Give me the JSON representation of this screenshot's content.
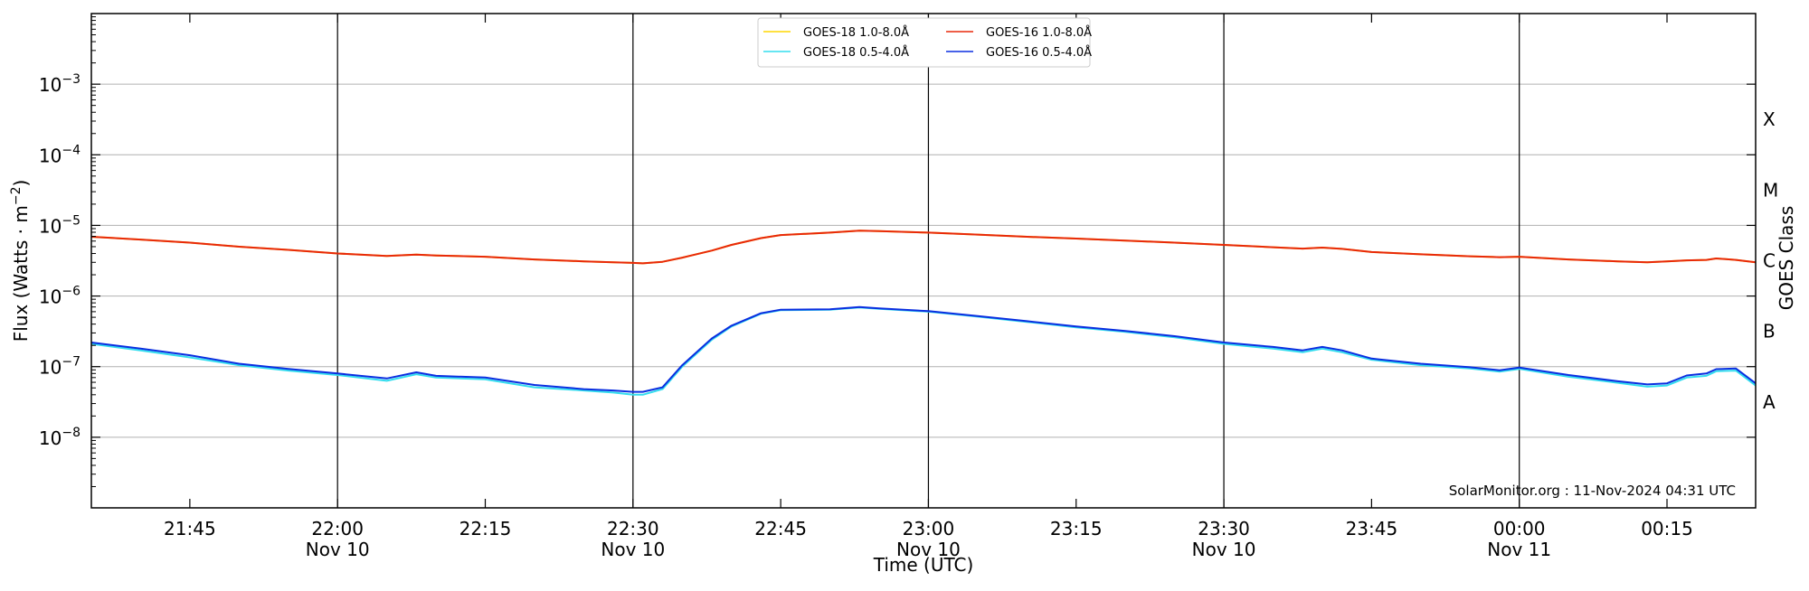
{
  "chart_data": {
    "type": "line",
    "title": "",
    "xlabel": "Time (UTC)",
    "ylabel": "Flux (Watts · m⁻²)",
    "y2label": "GOES Class",
    "yscale": "log",
    "xlim": [
      "2024-11-10T21:35",
      "2024-11-11T00:24"
    ],
    "ylim": [
      1e-09,
      0.01
    ],
    "grid": "horizontal at each decade; vertical lines at 30-minute marks",
    "legend_position": "top-center",
    "watermark": "SolarMonitor.org : 11-Nov-2024 04:31 UTC",
    "y_ticks": [
      {
        "value": 1e-08,
        "base": "10",
        "exp": "−8"
      },
      {
        "value": 1e-07,
        "base": "10",
        "exp": "−7"
      },
      {
        "value": 1e-06,
        "base": "10",
        "exp": "−6"
      },
      {
        "value": 1e-05,
        "base": "10",
        "exp": "−5"
      },
      {
        "value": 0.0001,
        "base": "10",
        "exp": "−4"
      },
      {
        "value": 0.001,
        "base": "10",
        "exp": "−3"
      }
    ],
    "x_ticks": [
      {
        "time": "2024-11-10T21:45",
        "label": "21:45",
        "sublabel": ""
      },
      {
        "time": "2024-11-10T22:00",
        "label": "22:00",
        "sublabel": "Nov 10"
      },
      {
        "time": "2024-11-10T22:15",
        "label": "22:15",
        "sublabel": ""
      },
      {
        "time": "2024-11-10T22:30",
        "label": "22:30",
        "sublabel": "Nov 10"
      },
      {
        "time": "2024-11-10T22:45",
        "label": "22:45",
        "sublabel": ""
      },
      {
        "time": "2024-11-10T23:00",
        "label": "23:00",
        "sublabel": "Nov 10"
      },
      {
        "time": "2024-11-10T23:15",
        "label": "23:15",
        "sublabel": ""
      },
      {
        "time": "2024-11-10T23:30",
        "label": "23:30",
        "sublabel": "Nov 10"
      },
      {
        "time": "2024-11-10T23:45",
        "label": "23:45",
        "sublabel": ""
      },
      {
        "time": "2024-11-11T00:00",
        "label": "00:00",
        "sublabel": "Nov 11"
      },
      {
        "time": "2024-11-11T00:15",
        "label": "00:15",
        "sublabel": ""
      }
    ],
    "goes_classes": [
      {
        "label": "A",
        "value": 3.16e-08
      },
      {
        "label": "B",
        "value": 3.16e-07
      },
      {
        "label": "C",
        "value": 3.16e-06
      },
      {
        "label": "M",
        "value": 3.16e-05
      },
      {
        "label": "X",
        "value": 0.000316
      }
    ],
    "x_times": [
      "2024-11-10T21:35",
      "2024-11-10T21:40",
      "2024-11-10T21:45",
      "2024-11-10T21:50",
      "2024-11-10T21:55",
      "2024-11-10T22:00",
      "2024-11-10T22:05",
      "2024-11-10T22:08",
      "2024-11-10T22:10",
      "2024-11-10T22:15",
      "2024-11-10T22:20",
      "2024-11-10T22:25",
      "2024-11-10T22:28",
      "2024-11-10T22:30",
      "2024-11-10T22:31",
      "2024-11-10T22:33",
      "2024-11-10T22:35",
      "2024-11-10T22:38",
      "2024-11-10T22:40",
      "2024-11-10T22:43",
      "2024-11-10T22:45",
      "2024-11-10T22:50",
      "2024-11-10T22:53",
      "2024-11-10T22:55",
      "2024-11-10T23:00",
      "2024-11-10T23:05",
      "2024-11-10T23:10",
      "2024-11-10T23:15",
      "2024-11-10T23:20",
      "2024-11-10T23:25",
      "2024-11-10T23:30",
      "2024-11-10T23:35",
      "2024-11-10T23:38",
      "2024-11-10T23:40",
      "2024-11-10T23:42",
      "2024-11-10T23:45",
      "2024-11-10T23:50",
      "2024-11-10T23:55",
      "2024-11-10T23:58",
      "2024-11-11T00:00",
      "2024-11-11T00:05",
      "2024-11-11T00:10",
      "2024-11-11T00:13",
      "2024-11-11T00:15",
      "2024-11-11T00:17",
      "2024-11-11T00:19",
      "2024-11-11T00:20",
      "2024-11-11T00:22",
      "2024-11-11T00:24"
    ],
    "series": [
      {
        "name": "GOES-18 1.0-8.0Å",
        "color": "#ffd700",
        "values": [
          6.9e-06,
          6.3e-06,
          5.7e-06,
          5e-06,
          4.5e-06,
          4e-06,
          3.7e-06,
          3.85e-06,
          3.75e-06,
          3.6e-06,
          3.3e-06,
          3.1e-06,
          3e-06,
          2.95e-06,
          2.9e-06,
          3.05e-06,
          3.5e-06,
          4.4e-06,
          5.3e-06,
          6.6e-06,
          7.3e-06,
          7.9e-06,
          8.4e-06,
          8.3e-06,
          7.9e-06,
          7.4e-06,
          6.9e-06,
          6.5e-06,
          6.1e-06,
          5.7e-06,
          5.3e-06,
          4.9e-06,
          4.7e-06,
          4.85e-06,
          4.65e-06,
          4.2e-06,
          3.9e-06,
          3.65e-06,
          3.55e-06,
          3.6e-06,
          3.3e-06,
          3.1e-06,
          3e-06,
          3.1e-06,
          3.2e-06,
          3.25e-06,
          3.4e-06,
          3.25e-06,
          3e-06
        ]
      },
      {
        "name": "GOES-16 1.0-8.0Å",
        "color": "#e8280a",
        "values": [
          6.9e-06,
          6.3e-06,
          5.7e-06,
          5e-06,
          4.5e-06,
          4e-06,
          3.7e-06,
          3.85e-06,
          3.75e-06,
          3.6e-06,
          3.3e-06,
          3.1e-06,
          3e-06,
          2.95e-06,
          2.9e-06,
          3.05e-06,
          3.5e-06,
          4.4e-06,
          5.3e-06,
          6.6e-06,
          7.3e-06,
          7.9e-06,
          8.4e-06,
          8.3e-06,
          7.9e-06,
          7.4e-06,
          6.9e-06,
          6.5e-06,
          6.1e-06,
          5.7e-06,
          5.3e-06,
          4.9e-06,
          4.7e-06,
          4.85e-06,
          4.65e-06,
          4.2e-06,
          3.9e-06,
          3.65e-06,
          3.55e-06,
          3.6e-06,
          3.3e-06,
          3.1e-06,
          3e-06,
          3.1e-06,
          3.2e-06,
          3.25e-06,
          3.4e-06,
          3.25e-06,
          3e-06
        ]
      },
      {
        "name": "GOES-18 0.5-4.0Å",
        "color": "#33ddee",
        "values": [
          2.1e-07,
          1.7e-07,
          1.35e-07,
          1.05e-07,
          8.8e-08,
          7.6e-08,
          6.3e-08,
          7.8e-08,
          7e-08,
          6.6e-08,
          5.1e-08,
          4.6e-08,
          4.3e-08,
          4e-08,
          4e-08,
          4.8e-08,
          1e-07,
          2.4e-07,
          3.7e-07,
          5.6e-07,
          6.3e-07,
          6.4e-07,
          6.9e-07,
          6.6e-07,
          6e-07,
          5.1e-07,
          4.3e-07,
          3.6e-07,
          3.1e-07,
          2.6e-07,
          2.1e-07,
          1.8e-07,
          1.6e-07,
          1.8e-07,
          1.6e-07,
          1.25e-07,
          1.05e-07,
          9.4e-08,
          8.5e-08,
          9.3e-08,
          7.2e-08,
          5.9e-08,
          5.2e-08,
          5.4e-08,
          7e-08,
          7.4e-08,
          8.6e-08,
          8.8e-08,
          5.4e-08
        ]
      },
      {
        "name": "GOES-16 0.5-4.0Å",
        "color": "#0a2ee0",
        "values": [
          2.2e-07,
          1.8e-07,
          1.45e-07,
          1.1e-07,
          9.3e-08,
          8e-08,
          6.8e-08,
          8.3e-08,
          7.4e-08,
          7e-08,
          5.5e-08,
          4.8e-08,
          4.6e-08,
          4.4e-08,
          4.4e-08,
          5.1e-08,
          1.05e-07,
          2.5e-07,
          3.8e-07,
          5.7e-07,
          6.4e-07,
          6.5e-07,
          7e-07,
          6.7e-07,
          6.1e-07,
          5.2e-07,
          4.4e-07,
          3.7e-07,
          3.2e-07,
          2.7e-07,
          2.2e-07,
          1.9e-07,
          1.7e-07,
          1.9e-07,
          1.7e-07,
          1.3e-07,
          1.1e-07,
          9.8e-08,
          8.9e-08,
          9.7e-08,
          7.6e-08,
          6.2e-08,
          5.6e-08,
          5.8e-08,
          7.5e-08,
          8e-08,
          9.2e-08,
          9.4e-08,
          5.8e-08
        ]
      }
    ]
  }
}
